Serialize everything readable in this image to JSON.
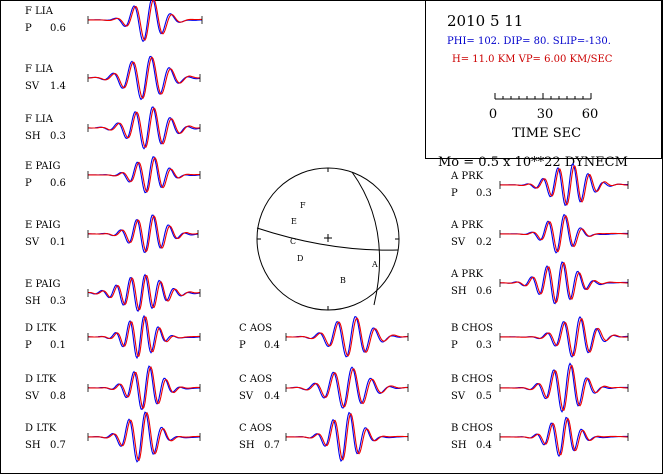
{
  "header": {
    "date": "2010  5 11",
    "params_line": "PHI= 102. DIP= 80. SLIP=-130.",
    "depth_line": "H= 11.0 KM  VP= 6.00 KM/SEC",
    "moment": "Mo =  0.5 x 10**22 DYNECM",
    "scale_ticks": [
      "0",
      "30",
      "60"
    ],
    "scale_label": "TIME  SEC"
  },
  "colors": {
    "observed": "#0000ee",
    "synthetic": "#ee0000",
    "ink": "#000000",
    "params_text": "#0000cc",
    "depth_text": "#cc0000"
  },
  "focal_mechanism": {
    "station_letters": [
      "F",
      "E",
      "C",
      "D",
      "B",
      "A"
    ]
  },
  "traces": [
    {
      "station": "F LIA",
      "component": "P",
      "amplitude": "0.6"
    },
    {
      "station": "F LIA",
      "component": "SV",
      "amplitude": "1.4"
    },
    {
      "station": "F LIA",
      "component": "SH",
      "amplitude": "0.3"
    },
    {
      "station": "E PAIG",
      "component": "P",
      "amplitude": "0.6"
    },
    {
      "station": "E PAIG",
      "component": "SV",
      "amplitude": "0.1"
    },
    {
      "station": "E PAIG",
      "component": "SH",
      "amplitude": "0.3"
    },
    {
      "station": "D LTK",
      "component": "P",
      "amplitude": "0.1"
    },
    {
      "station": "D LTK",
      "component": "SV",
      "amplitude": "0.8"
    },
    {
      "station": "D LTK",
      "component": "SH",
      "amplitude": "0.7"
    },
    {
      "station": "C AOS",
      "component": "P",
      "amplitude": "0.4"
    },
    {
      "station": "C AOS",
      "component": "SV",
      "amplitude": "0.4"
    },
    {
      "station": "C AOS",
      "component": "SH",
      "amplitude": "0.7"
    },
    {
      "station": "A PRK",
      "component": "P",
      "amplitude": "0.3"
    },
    {
      "station": "A PRK",
      "component": "SV",
      "amplitude": "0.2"
    },
    {
      "station": "A PRK",
      "component": "SH",
      "amplitude": "0.6"
    },
    {
      "station": "B CHOS",
      "component": "P",
      "amplitude": "0.3"
    },
    {
      "station": "B CHOS",
      "component": "SV",
      "amplitude": "0.5"
    },
    {
      "station": "B CHOS",
      "component": "SH",
      "amplitude": "0.4"
    }
  ]
}
